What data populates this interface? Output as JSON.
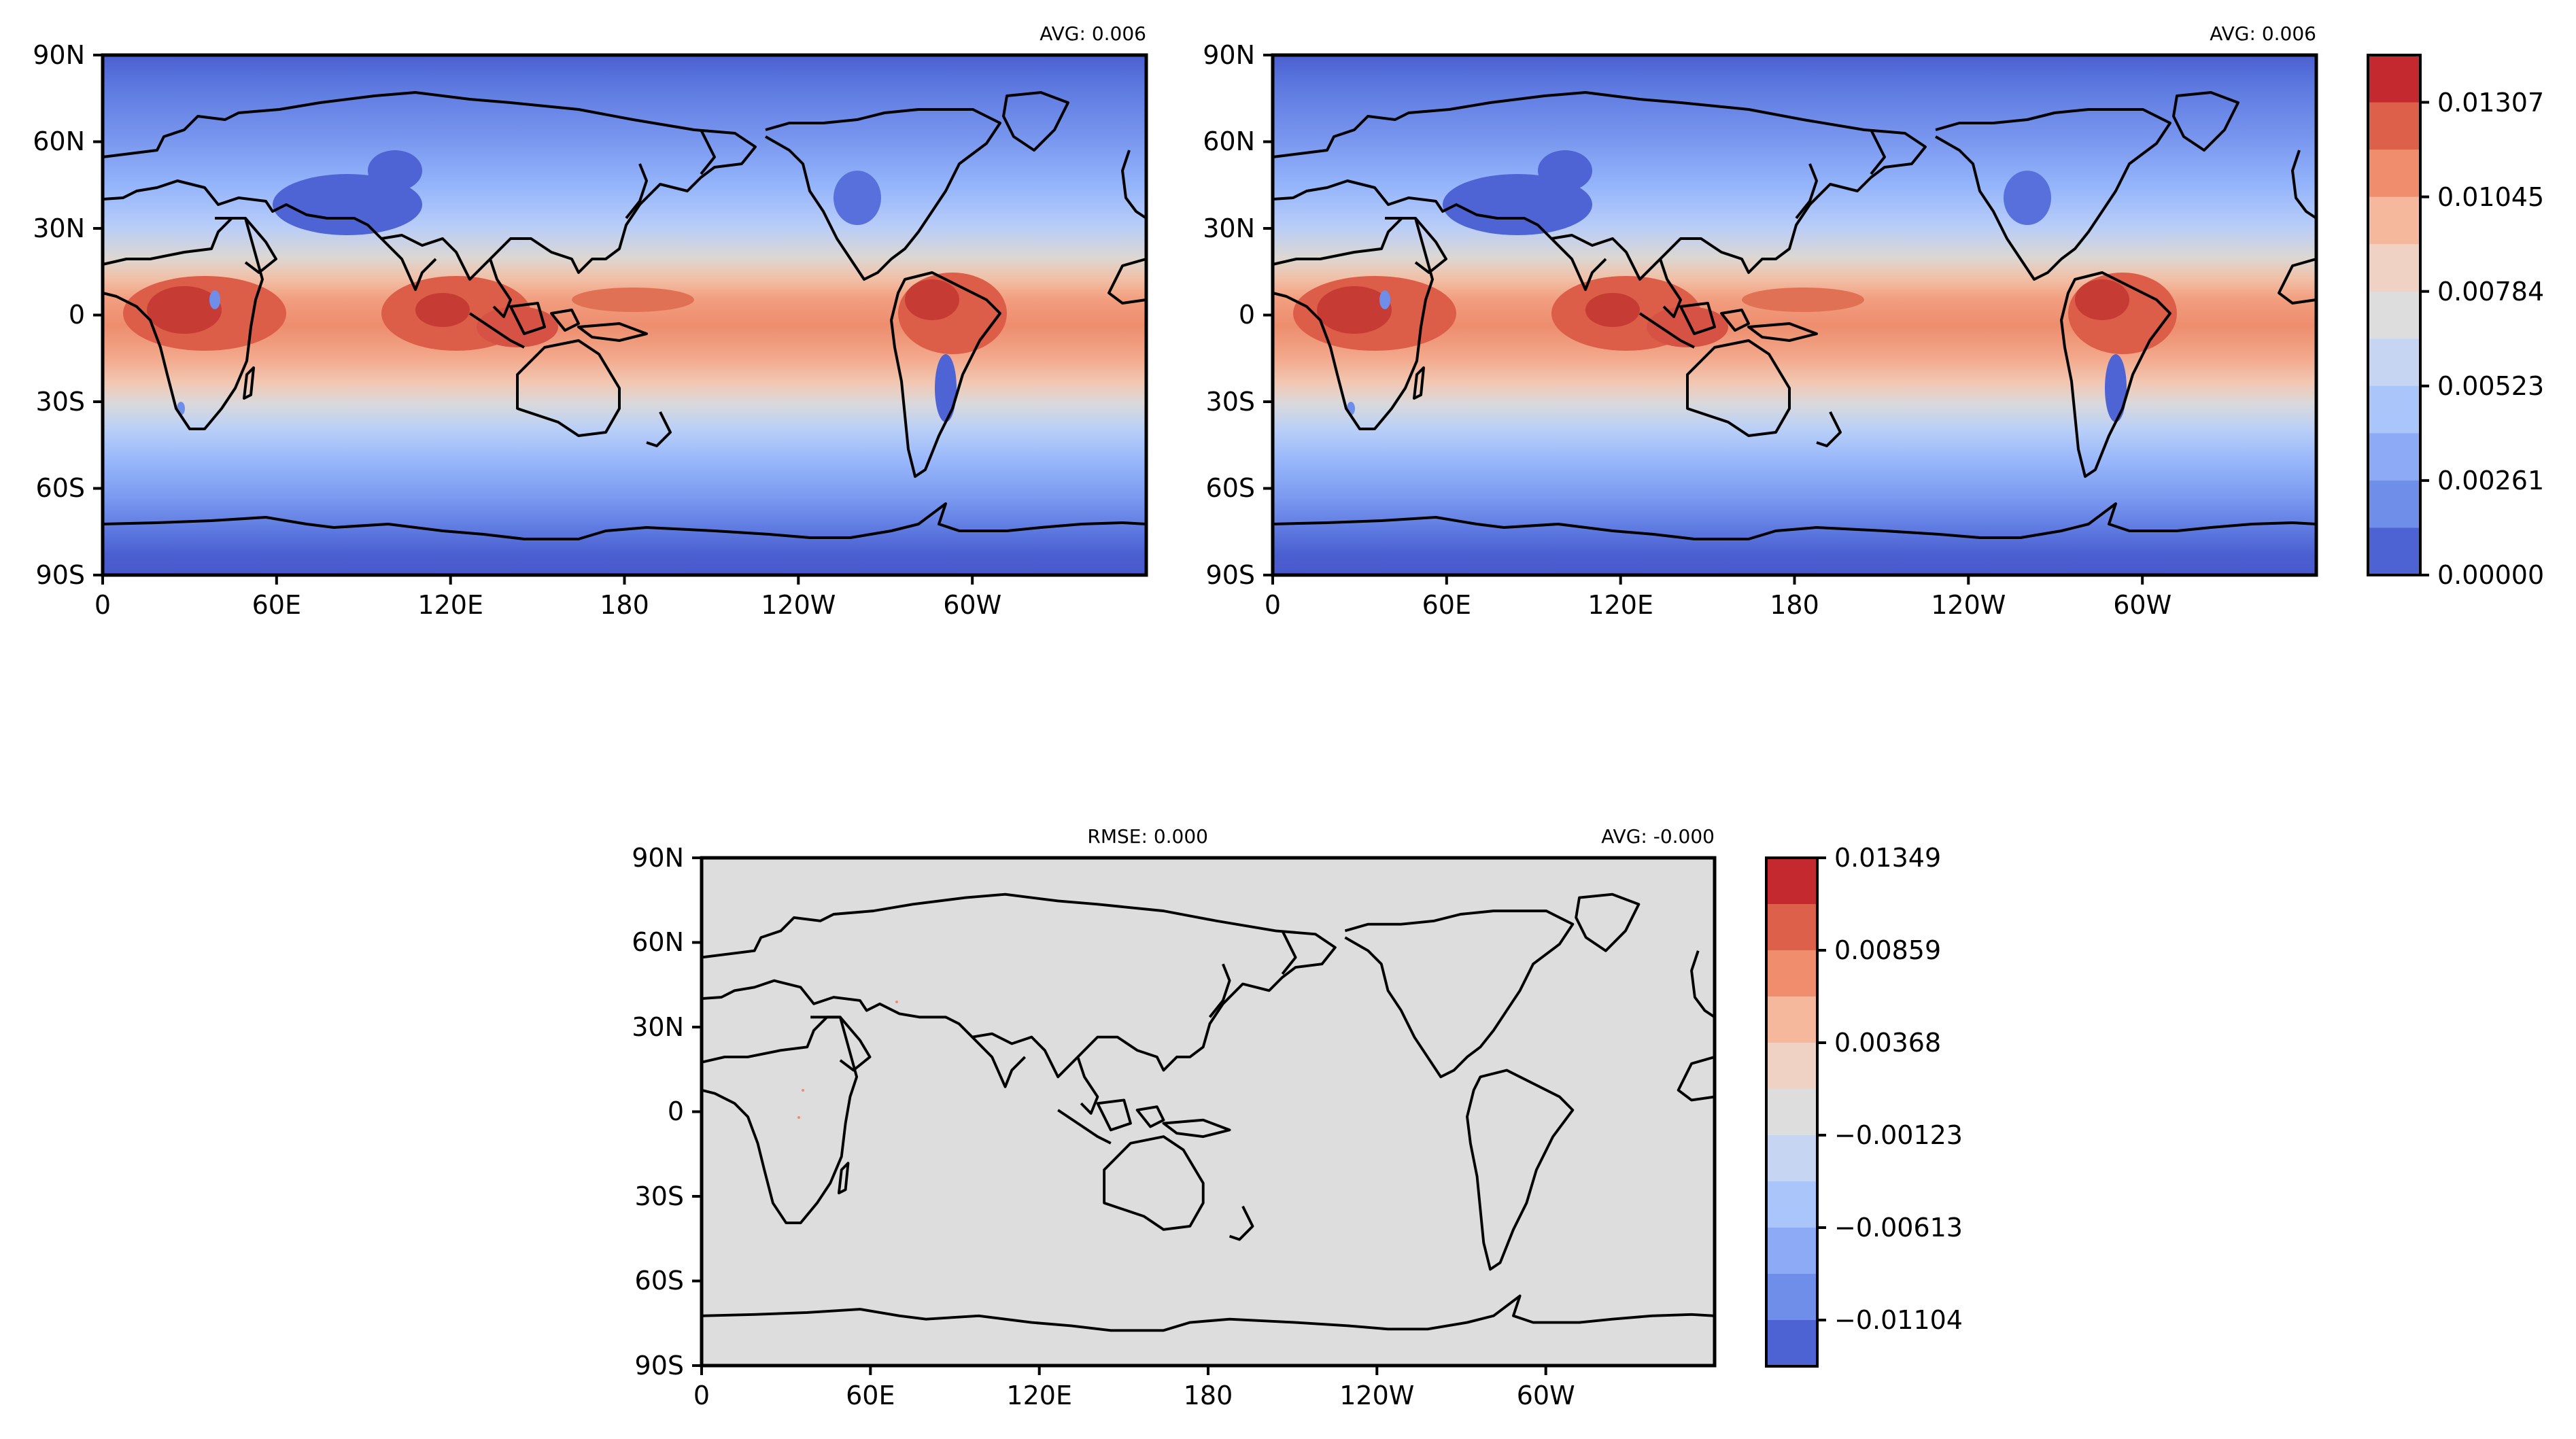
{
  "panels": [
    {
      "id": "top-left",
      "annotations": {
        "left": "",
        "right": "AVG: 0.006"
      },
      "y_ticks": [
        "90N",
        "60N",
        "30N",
        "0",
        "30S",
        "60S",
        "90S"
      ],
      "x_ticks": [
        "0",
        "60E",
        "120E",
        "180",
        "120W",
        "60W"
      ]
    },
    {
      "id": "top-right",
      "annotations": {
        "left": "",
        "right": "AVG: 0.006"
      },
      "y_ticks": [
        "90N",
        "60N",
        "30N",
        "0",
        "30S",
        "60S",
        "90S"
      ],
      "x_ticks": [
        "0",
        "60E",
        "120E",
        "180",
        "120W",
        "60W"
      ]
    },
    {
      "id": "bottom-diff",
      "annotations": {
        "left": "RMSE: 0.000",
        "right": "AVG: -0.000"
      },
      "y_ticks": [
        "90N",
        "60N",
        "30N",
        "0",
        "30S",
        "60S",
        "90S"
      ],
      "x_ticks": [
        "0",
        "60E",
        "120E",
        "180",
        "120W",
        "60W"
      ]
    }
  ],
  "colorbars": [
    {
      "id": "top-colorbar",
      "tick_labels": [
        "0.01307",
        "0.01045",
        "0.00784",
        "0.00523",
        "0.00261",
        "0.00000"
      ],
      "colors": [
        "#c4292f",
        "#dd604b",
        "#f08d6c",
        "#f6b89d",
        "#efd2c4",
        "#dddddd",
        "#c6d5f1",
        "#a9c5fa",
        "#8caaf6",
        "#6e8ee9",
        "#4e63d3"
      ]
    },
    {
      "id": "bottom-colorbar",
      "tick_labels": [
        "0.01349",
        "0.00859",
        "0.00368",
        "−0.00123",
        "−0.00613",
        "−0.01104"
      ],
      "colors": [
        "#c4292f",
        "#dd604b",
        "#f08d6c",
        "#f6b89d",
        "#efd2c4",
        "#dddddd",
        "#c6d5f1",
        "#a9c5fa",
        "#8caaf6",
        "#6e8ee9",
        "#4e63d3"
      ]
    }
  ],
  "colors": {
    "diff_background": "#dddddd",
    "coastline": "#000000"
  }
}
